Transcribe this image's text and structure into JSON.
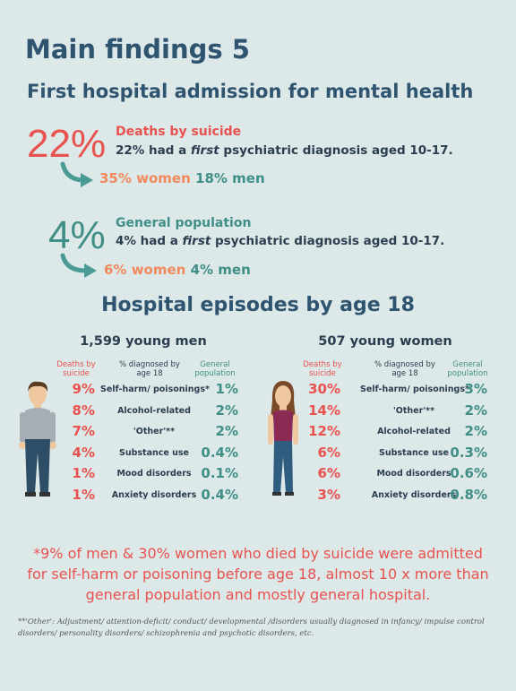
{
  "header": {
    "title": "Main findings 5",
    "subtitle": "First hospital admission for mental health"
  },
  "findings": [
    {
      "figure": "22%",
      "heading": "Deaths by suicide",
      "text_before": "22% had a",
      "text_em": "first",
      "text_after": "psychiatric diagnosis aged 10-17.",
      "women": "35% women",
      "men": "18% men"
    },
    {
      "figure": "4%",
      "heading": "General population",
      "text_before": "4% had a",
      "text_em": "first",
      "text_after": "psychiatric diagnosis aged 10-17.",
      "women": "6% women",
      "men": "4% men"
    }
  ],
  "episodes": {
    "title": "Hospital episodes by age 18",
    "panels": [
      {
        "title": "1,599 young men",
        "columns": [
          "Deaths by suicide",
          "% diagnosed by age 18",
          "General population"
        ],
        "rows": [
          [
            "9%",
            "Self-harm/ poisonings*",
            "1%"
          ],
          [
            "8%",
            "Alcohol-related",
            "2%"
          ],
          [
            "7%",
            "'Other'**",
            "2%"
          ],
          [
            "4%",
            "Substance use",
            "0.4%"
          ],
          [
            "1%",
            "Mood disorders",
            "0.1%"
          ],
          [
            "1%",
            "Anxiety disorders",
            "0.4%"
          ]
        ]
      },
      {
        "title": "507 young women",
        "columns": [
          "Deaths by suicide",
          "% diagnosed by age 18",
          "General population"
        ],
        "rows": [
          [
            "30%",
            "Self-harm/ poisonings*",
            "3%"
          ],
          [
            "14%",
            "'Other'**",
            "2%"
          ],
          [
            "12%",
            "Alcohol-related",
            "2%"
          ],
          [
            "6%",
            "Substance use",
            "0.3%"
          ],
          [
            "6%",
            "Mood disorders",
            "0.6%"
          ],
          [
            "3%",
            "Anxiety disorders",
            "0.8%"
          ]
        ]
      }
    ]
  },
  "note": "*9% of men & 30% women who died by suicide were admitted for self-harm or poisoning before age 18, almost 10 x more than general population and mostly general hospital.",
  "footnote": "**'Other': Adjustment/ attention-deficit/ conduct/ developmental /disorders usually diagnosed in infancy/ impulse control disorders/ personality disorders/ schizophrenia and psychotic disorders, etc."
}
